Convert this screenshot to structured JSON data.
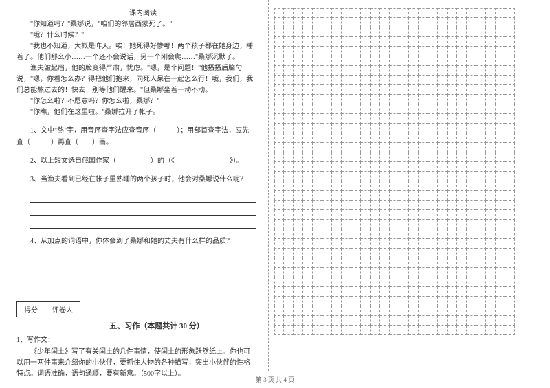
{
  "reading": {
    "heading": "课内阅读",
    "p1": "\"你知道吗？\"桑娜说，\"咱们的邻居西蒙死了。\"",
    "p2": "\"哦？什么时候？\"",
    "p3": "\"我也不知道，大概是昨天。唉！她死得好惨哪！两个孩子都在她身边，睡着了。他们那么小……一个还不会说话，另一个刚会爬……\"桑娜沉默了。",
    "p4": "渔夫皱起眉，他的脸变得严肃，忧虑。\"嗯，是个问题！\"他搔搔后脑勺说，\"嗯，你看怎么办？得把他们抱来，同死人呆在一起怎么行！哦，我们，我们总能熬过去的！快去！别等他们醒来。\"但桑娜坐着一动不动。",
    "p5": "\"你怎么啦？不愿意吗？你怎么啦，桑娜？\"",
    "p6": "\"你瞧，他们在这里啦。\"桑娜拉开了帐子。",
    "q1": "1、文中\"熬\"字，用音序查字法应查音序（　　　）；用部首查字法，应先查（　　　）再查（　　）画。",
    "q2": "2、以上短文选自俄国作家（　　　　　）的（《　　　　　　　　》）。",
    "q3": "3、当渔夫看到已经在帐子里熟睡的两个孩子时，他会对桑娜说什么呢？",
    "q4": "4、从加点的词语中，你体会到了桑娜和她的丈夫有什么样的品质？"
  },
  "score": {
    "a": "得分",
    "b": "评卷人"
  },
  "section5": {
    "title": "五、习作（本题共计 30 分）",
    "label": "1、写作文：",
    "body": "《少年闰土》写了有关闰土的几件事情，使闰土的形象跃然纸上。你也可以用一两件事来介绍你的小伙伴，要抓住人物的各种描写，突出小伙伴的性格特点。词语准确，语句通顺，要有新意。（500字以上）。"
  },
  "grid": {
    "rows": 34,
    "cols": 25
  },
  "footer": "第 3 页 共 4 页"
}
